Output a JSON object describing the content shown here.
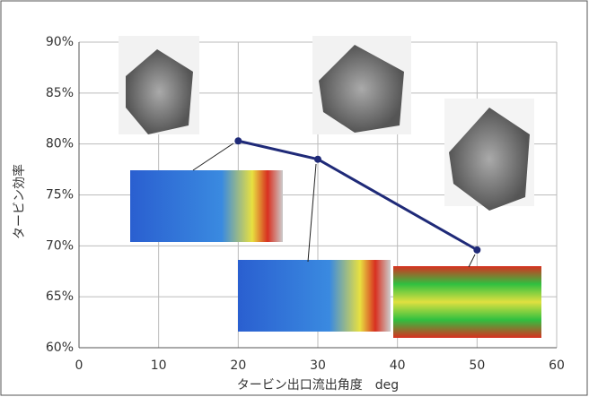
{
  "chart_data": {
    "type": "line",
    "x_label": "タービン出口流出角度　deg",
    "y_label": "タービン効率",
    "series": [
      {
        "x": [
          20,
          30,
          50
        ],
        "values": [
          80.3,
          78.5,
          69.6
        ],
        "color": "#1f2a78"
      }
    ],
    "xlim": [
      0,
      60
    ],
    "xticks": [
      0,
      10,
      20,
      30,
      40,
      50,
      60
    ],
    "ylim": [
      60,
      90
    ],
    "yticks": [
      {
        "value": 60,
        "label": "60%"
      },
      {
        "value": 65,
        "label": "65%"
      },
      {
        "value": 70,
        "label": "70%"
      },
      {
        "value": 75,
        "label": "75%"
      },
      {
        "value": 80,
        "label": "80%"
      },
      {
        "value": 85,
        "label": "85%"
      },
      {
        "value": 90,
        "label": "90%"
      }
    ],
    "grid": true
  }
}
